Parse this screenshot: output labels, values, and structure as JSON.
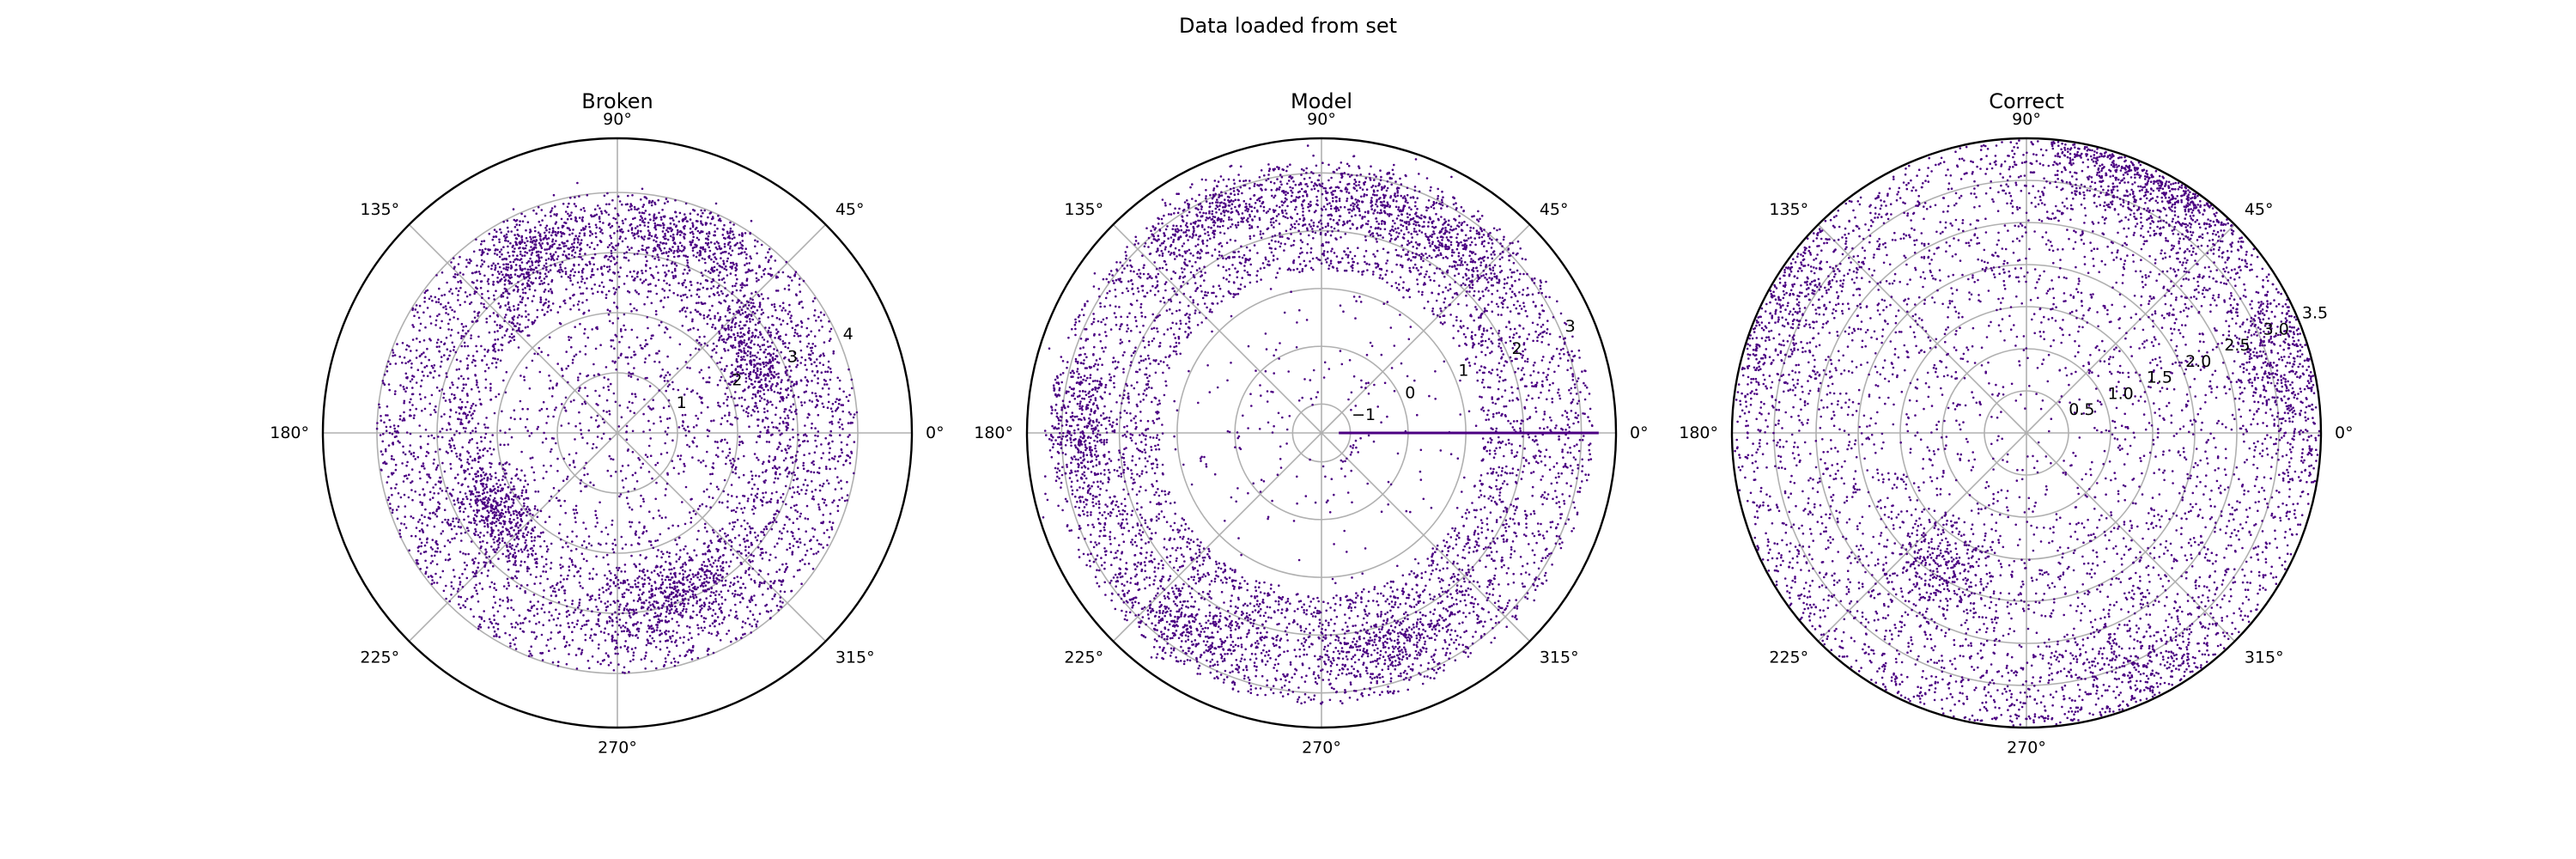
{
  "figure": {
    "suptitle": "Data loaded from set"
  },
  "chart_data": [
    {
      "type": "scatter",
      "projection": "polar",
      "title": "Broken",
      "theta_ticks_deg": [
        0,
        45,
        90,
        135,
        180,
        225,
        270,
        315
      ],
      "theta_tick_labels": [
        "0°",
        "45°",
        "90°",
        "135°",
        "180°",
        "225°",
        "270°",
        "315°"
      ],
      "rlim": [
        0,
        4.9
      ],
      "r_ticks": [
        1,
        2,
        3,
        4
      ],
      "r_tick_labels": [
        "1",
        "2",
        "3",
        "4"
      ],
      "r_label_angle_deg": 22.5,
      "grid": true,
      "color": "#4b0082",
      "series": [
        {
          "points_count": 6000,
          "r_distribution": "roughly uniform disc, bulk within r ≈ 2.3–4.0, sparse near center",
          "clusters": [
            {
              "theta_deg": 70,
              "r": 3.4
            },
            {
              "theta_deg": 115,
              "r": 3.3
            },
            {
              "theta_deg": 215,
              "r": 2.4
            },
            {
              "theta_deg": 290,
              "r": 2.9
            },
            {
              "theta_deg": 30,
              "r": 2.6
            }
          ]
        }
      ]
    },
    {
      "type": "scatter",
      "projection": "polar",
      "title": "Model",
      "theta_ticks_deg": [
        0,
        45,
        90,
        135,
        180,
        225,
        270,
        315
      ],
      "theta_tick_labels": [
        "0°",
        "45°",
        "90°",
        "135°",
        "180°",
        "225°",
        "270°",
        "315°"
      ],
      "rlim": [
        -1.5,
        3.6
      ],
      "r_ticks": [
        -1,
        0,
        1,
        2,
        3
      ],
      "r_tick_labels": [
        "−1",
        "0",
        "1",
        "2",
        "3"
      ],
      "r_label_angle_deg": 22.5,
      "grid": true,
      "color": "#4b0082",
      "series": [
        {
          "points_count": 6000,
          "r_distribution": "annulus, bulk within r ≈ 1.3–3.2",
          "line_segment": {
            "theta_deg": 0,
            "r_from": -1.2,
            "r_to": 3.3
          },
          "clusters": [
            {
              "theta_deg": 80,
              "r": 2.6
            },
            {
              "theta_deg": 55,
              "r": 2.5
            },
            {
              "theta_deg": 180,
              "r": 2.7
            },
            {
              "theta_deg": 235,
              "r": 2.6
            },
            {
              "theta_deg": 290,
              "r": 2.4
            },
            {
              "theta_deg": 115,
              "r": 2.8
            }
          ]
        }
      ]
    },
    {
      "type": "scatter",
      "projection": "polar",
      "title": "Correct",
      "theta_ticks_deg": [
        0,
        45,
        90,
        135,
        180,
        225,
        270,
        315
      ],
      "theta_tick_labels": [
        "0°",
        "45°",
        "90°",
        "135°",
        "180°",
        "225°",
        "270°",
        "315°"
      ],
      "rlim": [
        0,
        3.5
      ],
      "r_ticks": [
        0.5,
        1.0,
        1.5,
        2.0,
        2.5,
        3.0,
        3.5
      ],
      "r_tick_labels": [
        "0.5",
        "1.0",
        "1.5",
        "2.0",
        "2.5",
        "3.0",
        "3.5"
      ],
      "r_label_angle_deg": 22.5,
      "grid": true,
      "color": "#4b0082",
      "series": [
        {
          "points_count": 6000,
          "r_distribution": "fills whole disc up to r = 3.5, denser toward the outer edge",
          "clusters": [
            {
              "theta_deg": 70,
              "r": 3.3
            },
            {
              "theta_deg": 55,
              "r": 3.2
            },
            {
              "theta_deg": 240,
              "r": 1.9
            },
            {
              "theta_deg": 295,
              "r": 3.1
            },
            {
              "theta_deg": 150,
              "r": 3.2
            },
            {
              "theta_deg": 15,
              "r": 3.1
            }
          ]
        }
      ]
    }
  ]
}
